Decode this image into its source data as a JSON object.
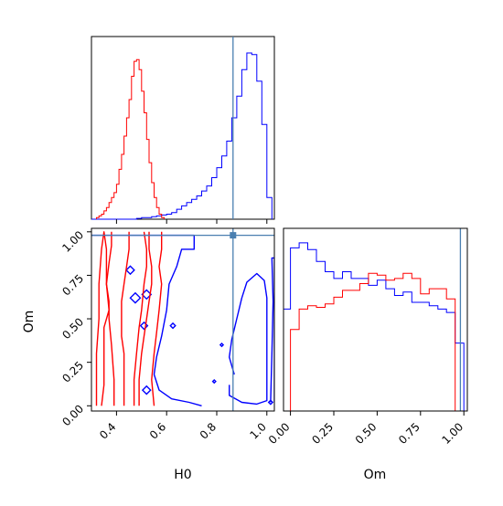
{
  "chart_data": [
    {
      "type": "histogram",
      "panel": "H0 marginal",
      "xlabel": "",
      "ylabel": "",
      "xlim": [
        0.3,
        1.03
      ],
      "truth_line": 0.865,
      "series": [
        {
          "name": "",
          "color": "#0000ff",
          "bin_edges": [
            0.3,
            0.32,
            0.34,
            0.36,
            0.38,
            0.4,
            0.42,
            0.44,
            0.46,
            0.48,
            0.5,
            0.52,
            0.54,
            0.56,
            0.58,
            0.6,
            0.62,
            0.64,
            0.66,
            0.68,
            0.7,
            0.72,
            0.74,
            0.76,
            0.78,
            0.8,
            0.82,
            0.84,
            0.86,
            0.88,
            0.9,
            0.92,
            0.94,
            0.96,
            0.98,
            1.0,
            1.02
          ],
          "values": [
            0,
            0,
            0,
            0,
            0,
            0,
            0,
            0,
            0,
            0.5,
            1,
            1,
            1.5,
            2,
            2.5,
            3,
            4,
            6,
            8,
            10,
            12,
            14,
            17,
            20,
            25,
            31,
            38,
            47,
            61,
            74,
            90,
            100,
            99,
            83,
            57,
            13
          ]
        },
        {
          "name": "",
          "color": "#ff0000",
          "bin_edges": [
            0.32,
            0.33,
            0.34,
            0.35,
            0.36,
            0.37,
            0.38,
            0.39,
            0.4,
            0.41,
            0.42,
            0.43,
            0.44,
            0.45,
            0.46,
            0.47,
            0.48,
            0.49,
            0.5,
            0.51,
            0.52,
            0.53,
            0.54,
            0.55,
            0.56,
            0.57,
            0.58,
            0.59
          ],
          "values": [
            1,
            2,
            3,
            5,
            7,
            10,
            13,
            16,
            21,
            30,
            39,
            50,
            61,
            72,
            86,
            95,
            96,
            90,
            77,
            64,
            48,
            34,
            22,
            13,
            7,
            3,
            1
          ]
        }
      ]
    },
    {
      "type": "contour",
      "panel": "H0 vs Om joint",
      "xlabel": "H0",
      "ylabel": "Om",
      "xlim": [
        0.3,
        1.03
      ],
      "ylim": [
        -0.03,
        1.02
      ],
      "xticks": [
        "0.4",
        "0.6",
        "0.8",
        "1.0"
      ],
      "yticks": [
        "0.00",
        "0.25",
        "0.50",
        "0.75",
        "1.00"
      ],
      "truth_point": {
        "x": 0.865,
        "y": 0.98
      },
      "series": [
        {
          "name": "",
          "color": "#0000ff",
          "contours": [
            [
              [
                0.29,
                0.0
              ],
              [
                0.29,
                0.98
              ],
              [
                0.71,
                0.98
              ],
              [
                0.71,
                0.9
              ],
              [
                0.66,
                0.9
              ],
              [
                0.64,
                0.8
              ],
              [
                0.61,
                0.7
              ],
              [
                0.6,
                0.55
              ],
              [
                0.58,
                0.4
              ],
              [
                0.56,
                0.28
              ],
              [
                0.55,
                0.18
              ],
              [
                0.57,
                0.09
              ],
              [
                0.62,
                0.04
              ],
              [
                0.69,
                0.02
              ],
              [
                0.74,
                0.0
              ]
            ],
            [
              [
                0.87,
                0.18
              ],
              [
                0.85,
                0.28
              ],
              [
                0.86,
                0.38
              ],
              [
                0.88,
                0.5
              ],
              [
                0.9,
                0.62
              ],
              [
                0.92,
                0.71
              ],
              [
                0.96,
                0.76
              ],
              [
                0.99,
                0.72
              ],
              [
                1.0,
                0.62
              ],
              [
                1.0,
                0.45
              ],
              [
                1.0,
                0.28
              ],
              [
                1.0,
                0.12
              ],
              [
                1.0,
                0.03
              ],
              [
                0.96,
                0.01
              ],
              [
                0.9,
                0.02
              ],
              [
                0.85,
                0.06
              ],
              [
                0.85,
                0.12
              ]
            ],
            [
              [
                1.015,
                0.02
              ],
              [
                1.02,
                0.3
              ],
              [
                1.025,
                0.6
              ],
              [
                1.02,
                0.85
              ],
              [
                1.03,
                0.85
              ],
              [
                1.03,
                0.02
              ]
            ]
          ],
          "small_contours": [
            {
              "x": 0.455,
              "y": 0.78,
              "size": 0.016
            },
            {
              "x": 0.475,
              "y": 0.62,
              "size": 0.02
            },
            {
              "x": 0.52,
              "y": 0.64,
              "size": 0.018
            },
            {
              "x": 0.51,
              "y": 0.46,
              "size": 0.014
            },
            {
              "x": 0.52,
              "y": 0.09,
              "size": 0.016
            },
            {
              "x": 0.625,
              "y": 0.46,
              "size": 0.01
            },
            {
              "x": 0.79,
              "y": 0.14,
              "size": 0.006
            },
            {
              "x": 0.82,
              "y": 0.35,
              "size": 0.006
            },
            {
              "x": 1.015,
              "y": 0.02,
              "size": 0.008
            }
          ]
        },
        {
          "name": "",
          "color": "#ff0000",
          "contours": [
            [
              [
                0.32,
                0.0
              ],
              [
                0.32,
                0.3
              ],
              [
                0.33,
                0.5
              ],
              [
                0.33,
                0.7
              ],
              [
                0.34,
                0.9
              ],
              [
                0.35,
                1.0
              ],
              [
                0.36,
                0.9
              ],
              [
                0.36,
                0.7
              ],
              [
                0.37,
                0.55
              ],
              [
                0.35,
                0.45
              ],
              [
                0.35,
                0.3
              ],
              [
                0.35,
                0.12
              ],
              [
                0.34,
                0.0
              ]
            ],
            [
              [
                0.39,
                0.0
              ],
              [
                0.39,
                0.15
              ],
              [
                0.38,
                0.35
              ],
              [
                0.37,
                0.5
              ],
              [
                0.37,
                0.6
              ],
              [
                0.36,
                0.7
              ],
              [
                0.37,
                0.82
              ],
              [
                0.38,
                0.92
              ],
              [
                0.38,
                1.0
              ]
            ],
            [
              [
                0.45,
                1.0
              ],
              [
                0.45,
                0.9
              ],
              [
                0.44,
                0.8
              ],
              [
                0.43,
                0.7
              ],
              [
                0.42,
                0.6
              ],
              [
                0.42,
                0.5
              ],
              [
                0.42,
                0.4
              ],
              [
                0.43,
                0.3
              ],
              [
                0.43,
                0.15
              ],
              [
                0.43,
                0.0
              ]
            ],
            [
              [
                0.47,
                0.0
              ],
              [
                0.47,
                0.15
              ],
              [
                0.48,
                0.3
              ],
              [
                0.49,
                0.45
              ],
              [
                0.5,
                0.55
              ],
              [
                0.51,
                0.7
              ],
              [
                0.52,
                0.8
              ],
              [
                0.52,
                0.9
              ],
              [
                0.51,
                1.0
              ]
            ],
            [
              [
                0.53,
                1.0
              ],
              [
                0.53,
                0.9
              ],
              [
                0.54,
                0.8
              ],
              [
                0.54,
                0.7
              ],
              [
                0.53,
                0.6
              ],
              [
                0.52,
                0.5
              ],
              [
                0.51,
                0.4
              ],
              [
                0.5,
                0.3
              ],
              [
                0.49,
                0.15
              ],
              [
                0.49,
                0.0
              ]
            ],
            [
              [
                0.55,
                0.0
              ],
              [
                0.54,
                0.15
              ],
              [
                0.55,
                0.3
              ],
              [
                0.56,
                0.42
              ],
              [
                0.57,
                0.55
              ],
              [
                0.58,
                0.7
              ],
              [
                0.57,
                0.8
              ],
              [
                0.58,
                0.9
              ],
              [
                0.58,
                1.0
              ]
            ]
          ]
        }
      ]
    },
    {
      "type": "histogram",
      "panel": "Om marginal",
      "xlabel": "Om",
      "ylabel": "",
      "xlim": [
        -0.04,
        1.02
      ],
      "xticks": [
        "0.00",
        "0.25",
        "0.50",
        "0.75",
        "1.00"
      ],
      "truth_line": 0.98,
      "series": [
        {
          "name": "",
          "color": "#0000ff",
          "bin_edges": [
            -0.05,
            0.0,
            0.05,
            0.1,
            0.15,
            0.2,
            0.25,
            0.3,
            0.35,
            0.4,
            0.45,
            0.5,
            0.55,
            0.6,
            0.65,
            0.7,
            0.75,
            0.8,
            0.85,
            0.9,
            0.95,
            1.0
          ],
          "values": [
            60,
            96,
            99,
            95,
            88,
            82,
            78,
            82,
            78,
            78,
            74,
            77,
            72,
            68,
            70,
            64,
            64,
            62,
            60,
            58,
            40
          ]
        },
        {
          "name": "",
          "color": "#ff0000",
          "bin_edges": [
            0.0,
            0.05,
            0.1,
            0.15,
            0.2,
            0.25,
            0.3,
            0.35,
            0.4,
            0.45,
            0.5,
            0.55,
            0.6,
            0.65,
            0.7,
            0.75,
            0.8,
            0.85,
            0.9,
            0.95,
            1.0
          ],
          "values": [
            48,
            60,
            62,
            61,
            63,
            67,
            71,
            71,
            75,
            81,
            80,
            77,
            78,
            81,
            78,
            69,
            72,
            72,
            66,
            0
          ]
        }
      ]
    }
  ],
  "labels": {
    "h0_axis_label": "H0",
    "om_axis_label": "Om",
    "om_x_axis_label": "Om"
  },
  "colors": {
    "truth": "#4a7fb0",
    "axis": "#000000"
  }
}
